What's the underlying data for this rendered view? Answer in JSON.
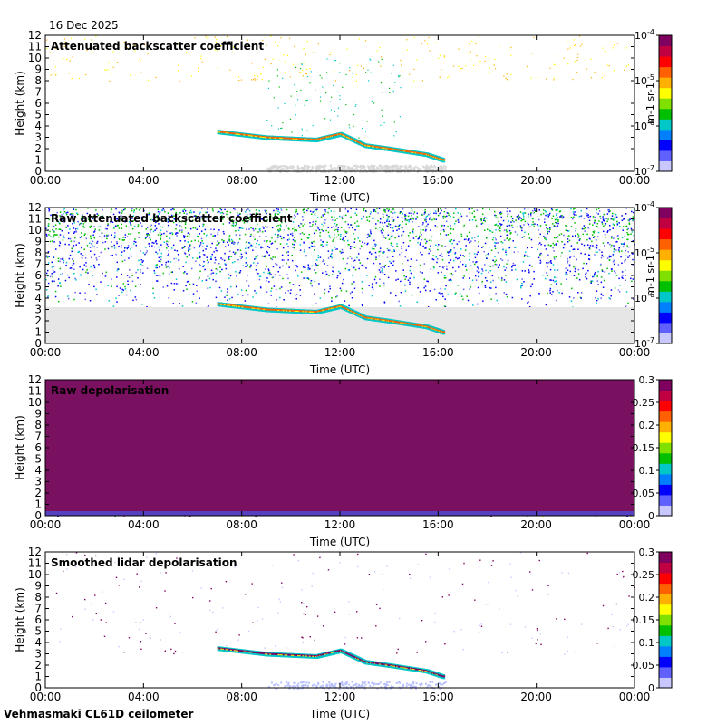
{
  "date": "16 Dec 2025",
  "footer": "Vehmasmaki CL61D ceilometer",
  "colormap": [
    "#c8c8ff",
    "#6060ff",
    "#0000ff",
    "#0080ff",
    "#00c8c8",
    "#00c000",
    "#80e000",
    "#ffff00",
    "#ffb000",
    "#ff6000",
    "#ff0000",
    "#c00040",
    "#800060"
  ],
  "chart_data": [
    {
      "type": "heatmap",
      "title": "Attenuated backscatter coefficient",
      "xlabel": "Time (UTC)",
      "ylabel": "Height (km)",
      "xticks": [
        "00:00",
        "04:00",
        "08:00",
        "12:00",
        "16:00",
        "20:00",
        "00:00"
      ],
      "yticks": [
        "0",
        "1",
        "2",
        "3",
        "4",
        "5",
        "6",
        "7",
        "8",
        "9",
        "10",
        "11",
        "12"
      ],
      "ylim": [
        0,
        12
      ],
      "colorbar": {
        "scale": "log",
        "ticks": [
          "10^-7",
          "10^-6",
          "10^-5",
          "10^-4"
        ],
        "unit_label": "m-1 sr-1"
      },
      "cloud_layer": [
        {
          "t": 7.0,
          "h": 3.5
        },
        {
          "t": 9.0,
          "h": 3.0
        },
        {
          "t": 11.0,
          "h": 2.8
        },
        {
          "t": 12.0,
          "h": 3.3
        },
        {
          "t": 13.0,
          "h": 2.3
        },
        {
          "t": 14.0,
          "h": 2.0
        },
        {
          "t": 15.5,
          "h": 1.5
        },
        {
          "t": 16.2,
          "h": 1.0
        }
      ]
    },
    {
      "type": "heatmap",
      "title": "Raw attenuated backscatter coefficient",
      "xlabel": "Time (UTC)",
      "ylabel": "Height (km)",
      "xticks": [
        "00:00",
        "04:00",
        "08:00",
        "12:00",
        "16:00",
        "20:00",
        "00:00"
      ],
      "yticks": [
        "0",
        "1",
        "2",
        "3",
        "4",
        "5",
        "6",
        "7",
        "8",
        "9",
        "10",
        "11",
        "12"
      ],
      "ylim": [
        0,
        12
      ],
      "colorbar": {
        "scale": "log",
        "ticks": [
          "10^-7",
          "10^-6",
          "10^-5",
          "10^-4"
        ],
        "unit_label": "m-1 sr-1"
      },
      "cloud_layer": [
        {
          "t": 7.0,
          "h": 3.5
        },
        {
          "t": 9.0,
          "h": 3.0
        },
        {
          "t": 11.0,
          "h": 2.8
        },
        {
          "t": 12.0,
          "h": 3.3
        },
        {
          "t": 13.0,
          "h": 2.3
        },
        {
          "t": 14.0,
          "h": 2.0
        },
        {
          "t": 15.5,
          "h": 1.5
        },
        {
          "t": 16.2,
          "h": 1.0
        }
      ]
    },
    {
      "type": "heatmap",
      "title": "Raw depolarisation",
      "xlabel": "Time (UTC)",
      "ylabel": "Height (km)",
      "xticks": [
        "00:00",
        "04:00",
        "08:00",
        "12:00",
        "16:00",
        "20:00",
        "00:00"
      ],
      "yticks": [
        "0",
        "1",
        "2",
        "3",
        "4",
        "5",
        "6",
        "7",
        "8",
        "9",
        "10",
        "11",
        "12"
      ],
      "ylim": [
        0,
        12
      ],
      "colorbar": {
        "scale": "linear",
        "ticks": [
          "0",
          "0.05",
          "0.1",
          "0.15",
          "0.2",
          "0.25",
          "0.3"
        ],
        "unit_label": ""
      }
    },
    {
      "type": "heatmap",
      "title": "Smoothed lidar depolarisation",
      "xlabel": "Time (UTC)",
      "ylabel": "Height (km)",
      "xticks": [
        "00:00",
        "04:00",
        "08:00",
        "12:00",
        "16:00",
        "20:00",
        "00:00"
      ],
      "yticks": [
        "0",
        "1",
        "2",
        "3",
        "4",
        "5",
        "6",
        "7",
        "8",
        "9",
        "10",
        "11",
        "12"
      ],
      "ylim": [
        0,
        12
      ],
      "colorbar": {
        "scale": "linear",
        "ticks": [
          "0",
          "0.05",
          "0.1",
          "0.15",
          "0.2",
          "0.25",
          "0.3"
        ],
        "unit_label": ""
      },
      "cloud_layer": [
        {
          "t": 7.0,
          "h": 3.5
        },
        {
          "t": 9.0,
          "h": 3.0
        },
        {
          "t": 11.0,
          "h": 2.8
        },
        {
          "t": 12.0,
          "h": 3.3
        },
        {
          "t": 13.0,
          "h": 2.3
        },
        {
          "t": 14.0,
          "h": 2.0
        },
        {
          "t": 15.5,
          "h": 1.5
        },
        {
          "t": 16.2,
          "h": 1.0
        }
      ]
    }
  ]
}
